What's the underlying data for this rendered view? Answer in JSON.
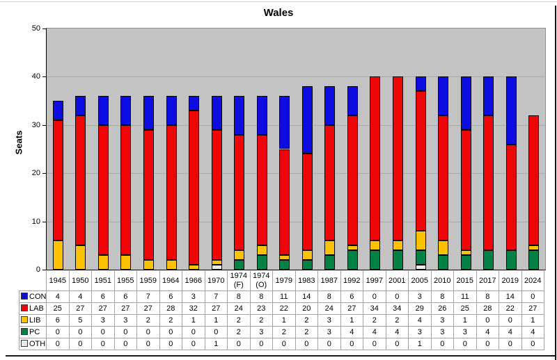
{
  "y_axis": {
    "label": "Seats",
    "ticks": [
      0,
      10,
      20,
      30,
      40,
      50
    ]
  },
  "chart_data": {
    "type": "bar",
    "stacked": true,
    "title": "Wales",
    "xlabel": "",
    "ylabel": "Seats",
    "ylim": [
      0,
      50
    ],
    "grid": true,
    "plot_background": "#c3c3c3",
    "legend_position": "table-left-column",
    "categories": [
      "1945",
      "1950",
      "1951",
      "1955",
      "1959",
      "1964",
      "1966",
      "1970",
      "1974 (F)",
      "1974 (O)",
      "1979",
      "1983",
      "1987",
      "1992",
      "1997",
      "2001",
      "2005",
      "2010",
      "2015",
      "2017",
      "2019",
      "2024"
    ],
    "series": [
      {
        "name": "CON",
        "color": "#0d0de2",
        "values": [
          4,
          4,
          6,
          6,
          7,
          6,
          3,
          7,
          8,
          8,
          11,
          14,
          8,
          6,
          0,
          0,
          3,
          8,
          11,
          8,
          14,
          0
        ]
      },
      {
        "name": "LAB",
        "color": "#ee0505",
        "values": [
          25,
          27,
          27,
          27,
          27,
          28,
          32,
          27,
          24,
          23,
          22,
          20,
          24,
          27,
          34,
          34,
          29,
          26,
          25,
          28,
          22,
          27
        ]
      },
      {
        "name": "LIB",
        "color": "#fdc204",
        "values": [
          6,
          5,
          3,
          3,
          2,
          2,
          1,
          1,
          2,
          2,
          1,
          2,
          3,
          1,
          2,
          2,
          4,
          3,
          1,
          0,
          0,
          1
        ]
      },
      {
        "name": "PC",
        "color": "#038145",
        "values": [
          0,
          0,
          0,
          0,
          0,
          0,
          0,
          0,
          2,
          3,
          2,
          2,
          3,
          4,
          4,
          4,
          3,
          3,
          3,
          4,
          4,
          4
        ]
      },
      {
        "name": "OTH",
        "color": "#ececec",
        "values": [
          0,
          0,
          0,
          0,
          0,
          0,
          0,
          1,
          0,
          0,
          0,
          0,
          0,
          0,
          0,
          0,
          1,
          0,
          0,
          0,
          0,
          0
        ]
      }
    ],
    "stack_order_bottom_to_top": [
      "OTH",
      "PC",
      "LIB",
      "LAB",
      "CON"
    ]
  }
}
